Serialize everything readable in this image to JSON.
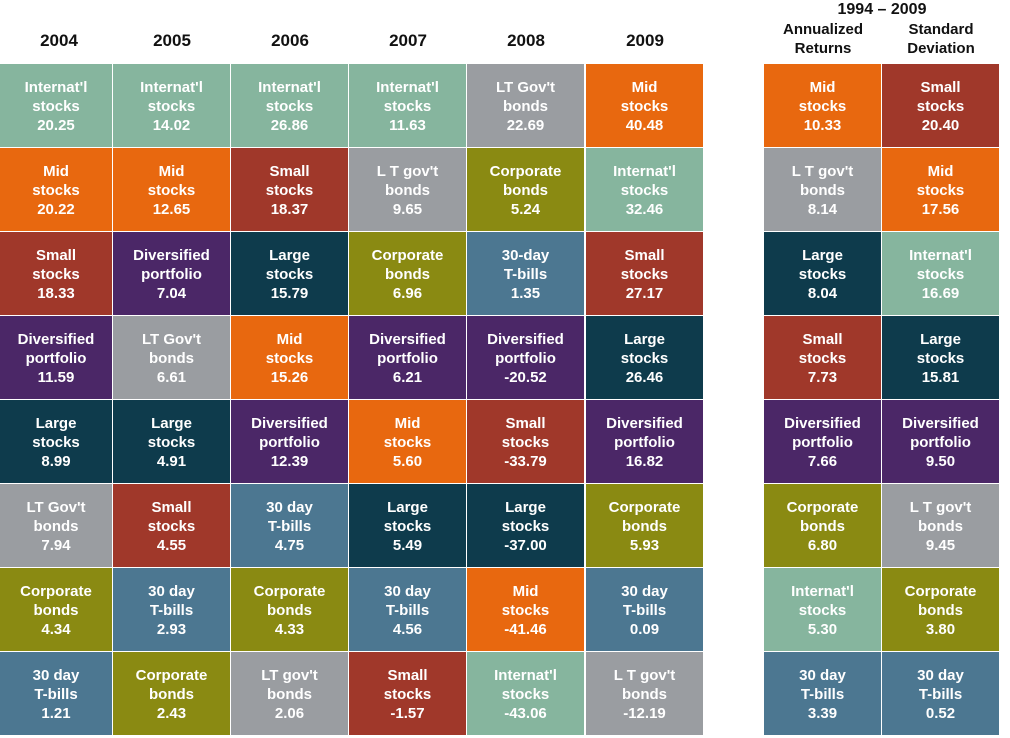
{
  "colors": {
    "Internat'l stocks": "#86b59e",
    "Mid stocks": "#e8680f",
    "Small stocks": "#a0382a",
    "Diversified portfolio": "#4b2767",
    "Large stocks": "#0e3b4c",
    "LT Gov't bonds": "#9a9da1",
    "Corporate bonds": "#8a8a12",
    "30-day T-bills": "#4c7791"
  },
  "chart_data": {
    "type": "table",
    "years": [
      "2004",
      "2005",
      "2006",
      "2007",
      "2008",
      "2009"
    ],
    "columns": [
      [
        {
          "l1": "Internat'l",
          "l2": "stocks",
          "value": "20.25",
          "cat": "Internat'l stocks"
        },
        {
          "l1": "Mid",
          "l2": "stocks",
          "value": "20.22",
          "cat": "Mid stocks"
        },
        {
          "l1": "Small",
          "l2": "stocks",
          "value": "18.33",
          "cat": "Small stocks"
        },
        {
          "l1": "Diversified",
          "l2": "portfolio",
          "value": "11.59",
          "cat": "Diversified portfolio"
        },
        {
          "l1": "Large",
          "l2": "stocks",
          "value": "8.99",
          "cat": "Large stocks"
        },
        {
          "l1": "LT Gov't",
          "l2": "bonds",
          "value": "7.94",
          "cat": "LT Gov't bonds"
        },
        {
          "l1": "Corporate",
          "l2": "bonds",
          "value": "4.34",
          "cat": "Corporate bonds"
        },
        {
          "l1": "30 day",
          "l2": "T-bills",
          "value": "1.21",
          "cat": "30-day T-bills"
        }
      ],
      [
        {
          "l1": "Internat'l",
          "l2": "stocks",
          "value": "14.02",
          "cat": "Internat'l stocks"
        },
        {
          "l1": "Mid",
          "l2": "stocks",
          "value": "12.65",
          "cat": "Mid stocks"
        },
        {
          "l1": "Diversified",
          "l2": "portfolio",
          "value": "7.04",
          "cat": "Diversified portfolio"
        },
        {
          "l1": "LT Gov't",
          "l2": "bonds",
          "value": "6.61",
          "cat": "LT Gov't bonds"
        },
        {
          "l1": "Large",
          "l2": "stocks",
          "value": "4.91",
          "cat": "Large stocks"
        },
        {
          "l1": "Small",
          "l2": "stocks",
          "value": "4.55",
          "cat": "Small stocks"
        },
        {
          "l1": "30 day",
          "l2": "T-bills",
          "value": "2.93",
          "cat": "30-day T-bills"
        },
        {
          "l1": "Corporate",
          "l2": "bonds",
          "value": "2.43",
          "cat": "Corporate bonds"
        }
      ],
      [
        {
          "l1": "Internat'l",
          "l2": "stocks",
          "value": "26.86",
          "cat": "Internat'l stocks"
        },
        {
          "l1": "Small",
          "l2": "stocks",
          "value": "18.37",
          "cat": "Small stocks"
        },
        {
          "l1": "Large",
          "l2": "stocks",
          "value": "15.79",
          "cat": "Large stocks"
        },
        {
          "l1": "Mid",
          "l2": "stocks",
          "value": "15.26",
          "cat": "Mid stocks"
        },
        {
          "l1": "Diversified",
          "l2": "portfolio",
          "value": "12.39",
          "cat": "Diversified portfolio"
        },
        {
          "l1": "30 day",
          "l2": "T-bills",
          "value": "4.75",
          "cat": "30-day T-bills"
        },
        {
          "l1": "Corporate",
          "l2": "bonds",
          "value": "4.33",
          "cat": "Corporate bonds"
        },
        {
          "l1": "LT gov't",
          "l2": "bonds",
          "value": "2.06",
          "cat": "LT Gov't bonds"
        }
      ],
      [
        {
          "l1": "Internat'l",
          "l2": "stocks",
          "value": "11.63",
          "cat": "Internat'l stocks"
        },
        {
          "l1": "L T gov't",
          "l2": "bonds",
          "value": "9.65",
          "cat": "LT Gov't bonds"
        },
        {
          "l1": "Corporate",
          "l2": "bonds",
          "value": "6.96",
          "cat": "Corporate bonds"
        },
        {
          "l1": "Diversified",
          "l2": "portfolio",
          "value": "6.21",
          "cat": "Diversified portfolio"
        },
        {
          "l1": "Mid",
          "l2": "stocks",
          "value": "5.60",
          "cat": "Mid stocks"
        },
        {
          "l1": "Large",
          "l2": "stocks",
          "value": "5.49",
          "cat": "Large stocks"
        },
        {
          "l1": "30 day",
          "l2": "T-bills",
          "value": "4.56",
          "cat": "30-day T-bills"
        },
        {
          "l1": "Small",
          "l2": "stocks",
          "value": "-1.57",
          "cat": "Small stocks"
        }
      ],
      [
        {
          "l1": "LT Gov't",
          "l2": "bonds",
          "value": "22.69",
          "cat": "LT Gov't bonds"
        },
        {
          "l1": "Corporate",
          "l2": "bonds",
          "value": "5.24",
          "cat": "Corporate bonds"
        },
        {
          "l1": "30-day",
          "l2": "T-bills",
          "value": "1.35",
          "cat": "30-day T-bills"
        },
        {
          "l1": "Diversified",
          "l2": "portfolio",
          "value": "-20.52",
          "cat": "Diversified portfolio"
        },
        {
          "l1": "Small",
          "l2": "stocks",
          "value": "-33.79",
          "cat": "Small stocks"
        },
        {
          "l1": "Large",
          "l2": "stocks",
          "value": "-37.00",
          "cat": "Large stocks"
        },
        {
          "l1": "Mid",
          "l2": "stocks",
          "value": "-41.46",
          "cat": "Mid stocks"
        },
        {
          "l1": "Internat'l",
          "l2": "stocks",
          "value": "-43.06",
          "cat": "Internat'l stocks"
        }
      ],
      [
        {
          "l1": "Mid",
          "l2": "stocks",
          "value": "40.48",
          "cat": "Mid stocks"
        },
        {
          "l1": "Internat'l",
          "l2": "stocks",
          "value": "32.46",
          "cat": "Internat'l stocks"
        },
        {
          "l1": "Small",
          "l2": "stocks",
          "value": "27.17",
          "cat": "Small stocks"
        },
        {
          "l1": "Large",
          "l2": "stocks",
          "value": "26.46",
          "cat": "Large stocks"
        },
        {
          "l1": "Diversified",
          "l2": "portfolio",
          "value": "16.82",
          "cat": "Diversified portfolio"
        },
        {
          "l1": "Corporate",
          "l2": "bonds",
          "value": "5.93",
          "cat": "Corporate bonds"
        },
        {
          "l1": "30 day",
          "l2": "T-bills",
          "value": "0.09",
          "cat": "30-day T-bills"
        },
        {
          "l1": "L T gov't",
          "l2": "bonds",
          "value": "-12.19",
          "cat": "LT Gov't bonds"
        }
      ]
    ],
    "summary": {
      "period": "1994 – 2009",
      "headers": [
        [
          "Annualized",
          "Returns"
        ],
        [
          "Standard",
          "Deviation"
        ]
      ],
      "columns": [
        [
          {
            "l1": "Mid",
            "l2": "stocks",
            "value": "10.33",
            "cat": "Mid stocks"
          },
          {
            "l1": "L T gov't",
            "l2": "bonds",
            "value": "8.14",
            "cat": "LT Gov't bonds"
          },
          {
            "l1": "Large",
            "l2": "stocks",
            "value": "8.04",
            "cat": "Large stocks"
          },
          {
            "l1": "Small",
            "l2": "stocks",
            "value": "7.73",
            "cat": "Small stocks"
          },
          {
            "l1": "Diversified",
            "l2": "portfolio",
            "value": "7.66",
            "cat": "Diversified portfolio"
          },
          {
            "l1": "Corporate",
            "l2": "bonds",
            "value": "6.80",
            "cat": "Corporate bonds"
          },
          {
            "l1": "Internat'l",
            "l2": "stocks",
            "value": "5.30",
            "cat": "Internat'l stocks"
          },
          {
            "l1": "30 day",
            "l2": "T-bills",
            "value": "3.39",
            "cat": "30-day T-bills"
          }
        ],
        [
          {
            "l1": "Small",
            "l2": "stocks",
            "value": "20.40",
            "cat": "Small stocks"
          },
          {
            "l1": "Mid",
            "l2": "stocks",
            "value": "17.56",
            "cat": "Mid stocks"
          },
          {
            "l1": "Internat'l",
            "l2": "stocks",
            "value": "16.69",
            "cat": "Internat'l stocks"
          },
          {
            "l1": "Large",
            "l2": "stocks",
            "value": "15.81",
            "cat": "Large stocks"
          },
          {
            "l1": "Diversified",
            "l2": "portfolio",
            "value": "9.50",
            "cat": "Diversified portfolio"
          },
          {
            "l1": "L T gov't",
            "l2": "bonds",
            "value": "9.45",
            "cat": "LT Gov't bonds"
          },
          {
            "l1": "Corporate",
            "l2": "bonds",
            "value": "3.80",
            "cat": "Corporate bonds"
          },
          {
            "l1": "30 day",
            "l2": "T-bills",
            "value": "0.52",
            "cat": "30-day T-bills"
          }
        ]
      ]
    }
  }
}
